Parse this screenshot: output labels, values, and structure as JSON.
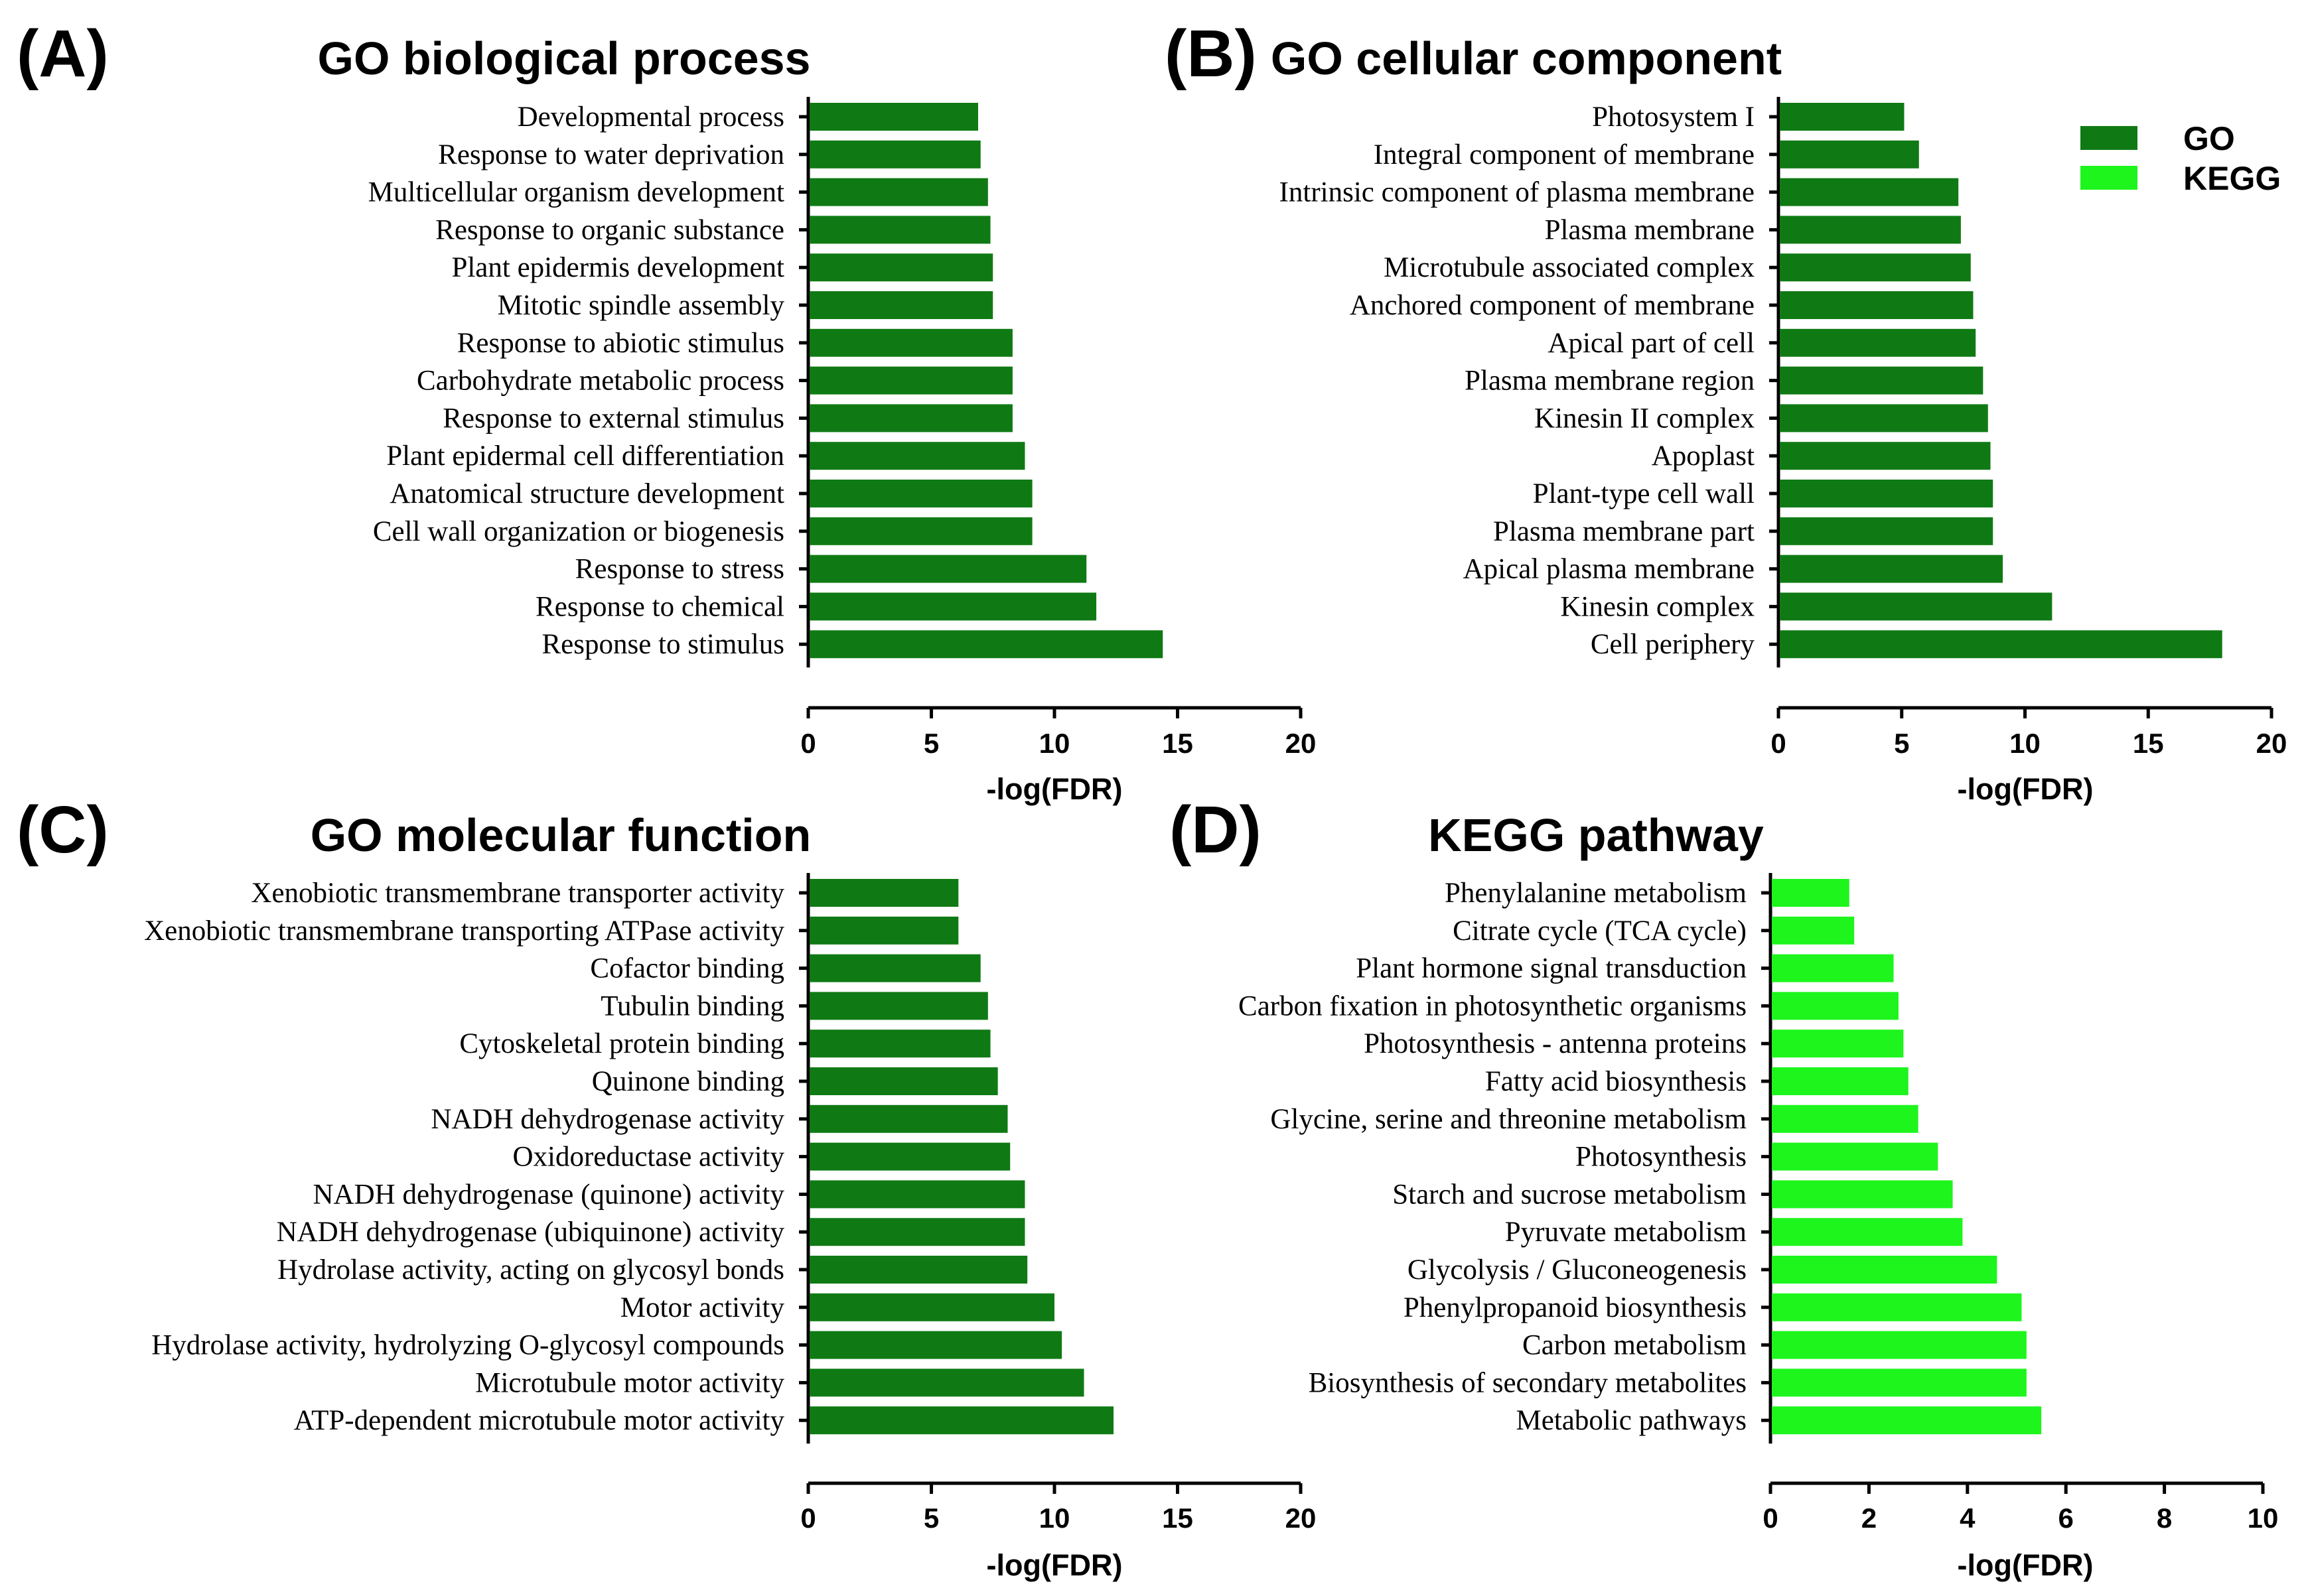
{
  "colors": {
    "go": "#0f7a14",
    "kegg": "#1df51d"
  },
  "legend": {
    "items": [
      {
        "label": "GO",
        "color": "#0f7a14"
      },
      {
        "label": "KEGG",
        "color": "#1df51d"
      }
    ]
  },
  "chart_data": [
    {
      "type": "bar",
      "orientation": "horizontal",
      "panel": "(A)",
      "title": "GO biological process",
      "xlabel": "-log(FDR)",
      "xlim": [
        0,
        20
      ],
      "xticks": [
        0,
        5,
        10,
        15,
        20
      ],
      "color": "#0f7a14",
      "categories": [
        "Developmental process",
        "Response to water deprivation",
        "Multicellular organism development",
        "Response to organic substance",
        "Plant epidermis development",
        "Mitotic spindle assembly",
        "Response to abiotic stimulus",
        "Carbohydrate metabolic process",
        "Response to external stimulus",
        "Plant epidermal cell differentiation",
        "Anatomical structure development",
        "Cell wall organization or biogenesis",
        "Response to stress",
        "Response to chemical",
        "Response to stimulus"
      ],
      "values": [
        6.9,
        7.0,
        7.3,
        7.4,
        7.5,
        7.5,
        8.3,
        8.3,
        8.3,
        8.8,
        9.1,
        9.1,
        11.3,
        11.7,
        14.4
      ]
    },
    {
      "type": "bar",
      "orientation": "horizontal",
      "panel": "(B)",
      "title": "GO cellular component",
      "xlabel": "-log(FDR)",
      "xlim": [
        0,
        20
      ],
      "xticks": [
        0,
        5,
        10,
        15,
        20
      ],
      "color": "#0f7a14",
      "categories": [
        "Photosystem I",
        "Integral component of membrane",
        "Intrinsic component of plasma membrane",
        "Plasma membrane",
        "Microtubule associated complex",
        "Anchored component of membrane",
        "Apical part of cell",
        "Plasma membrane region",
        "Kinesin II complex",
        "Apoplast",
        "Plant-type cell wall",
        "Plasma membrane part",
        "Apical plasma membrane",
        "Kinesin complex",
        "Cell periphery"
      ],
      "values": [
        5.1,
        5.7,
        7.3,
        7.4,
        7.8,
        7.9,
        8.0,
        8.3,
        8.5,
        8.6,
        8.7,
        8.7,
        9.1,
        11.1,
        18.0
      ]
    },
    {
      "type": "bar",
      "orientation": "horizontal",
      "panel": "(C)",
      "title": "GO molecular function",
      "xlabel": "-log(FDR)",
      "xlim": [
        0,
        20
      ],
      "xticks": [
        0,
        5,
        10,
        15,
        20
      ],
      "color": "#0f7a14",
      "categories": [
        "Xenobiotic transmembrane transporter activity",
        "Xenobiotic transmembrane transporting ATPase activity",
        "Cofactor binding",
        "Tubulin binding",
        "Cytoskeletal protein binding",
        "Quinone binding",
        "NADH dehydrogenase activity",
        "Oxidoreductase activity",
        "NADH dehydrogenase (quinone) activity",
        "NADH dehydrogenase (ubiquinone) activity",
        "Hydrolase activity, acting on glycosyl bonds",
        "Motor activity",
        "Hydrolase activity, hydrolyzing O-glycosyl compounds",
        "Microtubule motor activity",
        "ATP-dependent microtubule motor activity"
      ],
      "values": [
        6.1,
        6.1,
        7.0,
        7.3,
        7.4,
        7.7,
        8.1,
        8.2,
        8.8,
        8.8,
        8.9,
        10.0,
        10.3,
        11.2,
        12.4
      ]
    },
    {
      "type": "bar",
      "orientation": "horizontal",
      "panel": "(D)",
      "title": "KEGG pathway",
      "xlabel": "-log(FDR)",
      "xlim": [
        0,
        10
      ],
      "xticks": [
        0,
        2,
        4,
        6,
        8,
        10
      ],
      "color": "#1df51d",
      "categories": [
        "Phenylalanine metabolism",
        "Citrate cycle (TCA cycle)",
        "Plant hormone signal transduction",
        "Carbon fixation in photosynthetic organisms",
        "Photosynthesis - antenna proteins",
        "Fatty acid biosynthesis",
        "Glycine, serine and threonine metabolism",
        "Photosynthesis",
        "Starch and sucrose metabolism",
        "Pyruvate metabolism",
        "Glycolysis / Gluconeogenesis",
        "Phenylpropanoid biosynthesis",
        "Carbon metabolism",
        "Biosynthesis of secondary metabolites",
        "Metabolic pathways"
      ],
      "values": [
        1.6,
        1.7,
        2.5,
        2.6,
        2.7,
        2.8,
        3.0,
        3.4,
        3.7,
        3.9,
        4.6,
        5.1,
        5.2,
        5.2,
        5.5
      ]
    }
  ]
}
